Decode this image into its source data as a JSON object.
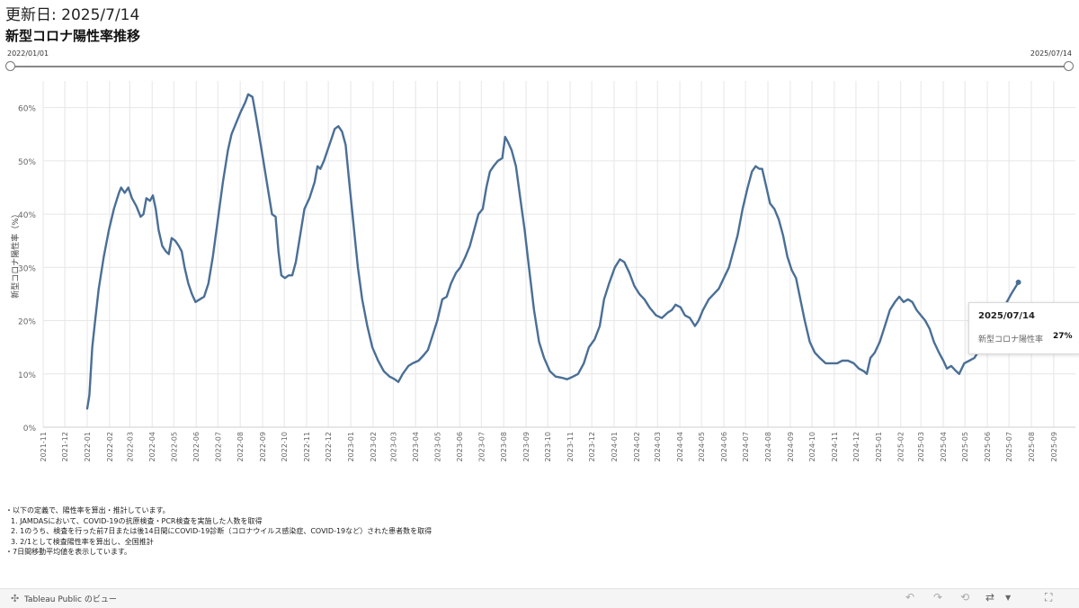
{
  "header": {
    "updated": "更新日: 2025/7/14",
    "title": "新型コロナ陽性率推移"
  },
  "range_filter": {
    "start": "2022/01/01",
    "end": "2025/07/14"
  },
  "tooltip": {
    "date": "2025/07/14",
    "label": "新型コロナ陽性率",
    "value": "27%"
  },
  "notes": [
    "・以下の定義で、陽性率を算出・推計しています。",
    "1. JAMDASにおいて、COVID-19の抗原検査・PCR検査を実施した人数を取得",
    "2. 1のうち、検査を行った前7日または後14日間にCOVID-19診断（コロナウイルス感染症、COVID-19など）された患者数を取得",
    "3. 2/1として検査陽性率を算出し、全国推計",
    "・7日間移動平均値を表示しています。"
  ],
  "footer": {
    "brand": "Tableau Public のビュー",
    "icons": [
      "undo-icon",
      "redo-icon",
      "revert-icon",
      "share-icon",
      "dropdown-icon",
      "fullscreen-icon"
    ]
  },
  "colors": {
    "line": "#4a6f96",
    "grid": "#e6e6e6"
  },
  "chart_data": {
    "type": "line",
    "ylabel": "新型コロナ陽性率（%）",
    "ylim": [
      0,
      65
    ],
    "yticks": [
      0,
      10,
      20,
      30,
      40,
      50,
      60
    ],
    "ytick_labels": [
      "0%",
      "10%",
      "20%",
      "30%",
      "40%",
      "50%",
      "60%"
    ],
    "x_months": [
      "2021-11",
      "2021-12",
      "2022-01",
      "2022-02",
      "2022-03",
      "2022-04",
      "2022-05",
      "2022-06",
      "2022-07",
      "2022-08",
      "2022-09",
      "2022-10",
      "2022-11",
      "2022-12",
      "2023-01",
      "2023-02",
      "2023-03",
      "2023-04",
      "2023-05",
      "2023-06",
      "2023-07",
      "2023-08",
      "2023-09",
      "2023-10",
      "2023-11",
      "2023-12",
      "2024-01",
      "2024-02",
      "2024-03",
      "2024-04",
      "2024-05",
      "2024-06",
      "2024-07",
      "2024-08",
      "2024-09",
      "2024-10",
      "2024-11",
      "2024-12",
      "2025-01",
      "2025-02",
      "2025-03",
      "2025-04",
      "2025-05",
      "2025-06",
      "2025-07",
      "2025-08",
      "2025-09"
    ],
    "grid": true,
    "series": [
      {
        "values": [
          [
            "2022-01-01",
            3.5
          ],
          [
            "2022-01-04",
            6
          ],
          [
            "2022-01-08",
            15
          ],
          [
            "2022-01-12",
            20
          ],
          [
            "2022-01-17",
            26
          ],
          [
            "2022-01-24",
            32
          ],
          [
            "2022-01-31",
            37
          ],
          [
            "2022-02-07",
            41
          ],
          [
            "2022-02-14",
            44
          ],
          [
            "2022-02-17",
            45
          ],
          [
            "2022-02-22",
            44
          ],
          [
            "2022-02-27",
            45
          ],
          [
            "2022-03-04",
            43
          ],
          [
            "2022-03-10",
            41.5
          ],
          [
            "2022-03-16",
            39.5
          ],
          [
            "2022-03-20",
            40
          ],
          [
            "2022-03-24",
            43
          ],
          [
            "2022-03-29",
            42.5
          ],
          [
            "2022-04-02",
            43.5
          ],
          [
            "2022-04-06",
            41
          ],
          [
            "2022-04-10",
            37
          ],
          [
            "2022-04-15",
            34
          ],
          [
            "2022-04-20",
            33
          ],
          [
            "2022-04-24",
            32.5
          ],
          [
            "2022-04-28",
            35.5
          ],
          [
            "2022-05-03",
            35
          ],
          [
            "2022-05-08",
            34
          ],
          [
            "2022-05-12",
            33
          ],
          [
            "2022-05-16",
            30
          ],
          [
            "2022-05-21",
            27
          ],
          [
            "2022-05-26",
            25
          ],
          [
            "2022-05-31",
            23.5
          ],
          [
            "2022-06-06",
            24
          ],
          [
            "2022-06-12",
            24.5
          ],
          [
            "2022-06-18",
            27
          ],
          [
            "2022-06-24",
            32
          ],
          [
            "2022-07-01",
            39
          ],
          [
            "2022-07-08",
            46
          ],
          [
            "2022-07-15",
            52
          ],
          [
            "2022-07-20",
            55
          ],
          [
            "2022-07-26",
            57
          ],
          [
            "2022-08-01",
            59
          ],
          [
            "2022-08-08",
            61
          ],
          [
            "2022-08-12",
            62.5
          ],
          [
            "2022-08-18",
            62
          ],
          [
            "2022-08-22",
            59
          ],
          [
            "2022-08-27",
            55
          ],
          [
            "2022-09-02",
            50
          ],
          [
            "2022-09-08",
            45
          ],
          [
            "2022-09-14",
            40
          ],
          [
            "2022-09-19",
            39.5
          ],
          [
            "2022-09-23",
            33
          ],
          [
            "2022-09-27",
            28.5
          ],
          [
            "2022-10-02",
            28
          ],
          [
            "2022-10-07",
            28.5
          ],
          [
            "2022-10-12",
            28.5
          ],
          [
            "2022-10-17",
            31
          ],
          [
            "2022-10-23",
            36
          ],
          [
            "2022-10-29",
            41
          ],
          [
            "2022-11-05",
            43
          ],
          [
            "2022-11-12",
            46
          ],
          [
            "2022-11-16",
            49
          ],
          [
            "2022-11-20",
            48.5
          ],
          [
            "2022-11-25",
            50
          ],
          [
            "2022-11-30",
            52
          ],
          [
            "2022-12-05",
            54
          ],
          [
            "2022-12-10",
            56
          ],
          [
            "2022-12-15",
            56.5
          ],
          [
            "2022-12-20",
            55.5
          ],
          [
            "2022-12-25",
            53
          ],
          [
            "2022-12-30",
            46
          ],
          [
            "2023-01-05",
            38
          ],
          [
            "2023-01-11",
            30
          ],
          [
            "2023-01-17",
            24
          ],
          [
            "2023-01-24",
            19
          ],
          [
            "2023-01-31",
            15
          ],
          [
            "2023-02-08",
            12.5
          ],
          [
            "2023-02-16",
            10.5
          ],
          [
            "2023-02-24",
            9.5
          ],
          [
            "2023-03-03",
            9
          ],
          [
            "2023-03-08",
            8.5
          ],
          [
            "2023-03-14",
            10
          ],
          [
            "2023-03-22",
            11.5
          ],
          [
            "2023-03-28",
            12
          ],
          [
            "2023-04-05",
            12.5
          ],
          [
            "2023-04-12",
            13.5
          ],
          [
            "2023-04-18",
            14.5
          ],
          [
            "2023-04-24",
            17
          ],
          [
            "2023-05-01",
            20
          ],
          [
            "2023-05-08",
            24
          ],
          [
            "2023-05-14",
            24.5
          ],
          [
            "2023-05-20",
            27
          ],
          [
            "2023-05-27",
            29
          ],
          [
            "2023-06-02",
            30
          ],
          [
            "2023-06-09",
            32
          ],
          [
            "2023-06-15",
            34
          ],
          [
            "2023-06-21",
            37
          ],
          [
            "2023-06-27",
            40
          ],
          [
            "2023-07-03",
            41
          ],
          [
            "2023-07-08",
            45
          ],
          [
            "2023-07-13",
            48
          ],
          [
            "2023-07-18",
            49
          ],
          [
            "2023-07-24",
            50
          ],
          [
            "2023-07-30",
            50.5
          ],
          [
            "2023-08-03",
            54.5
          ],
          [
            "2023-08-07",
            53.5
          ],
          [
            "2023-08-12",
            52
          ],
          [
            "2023-08-18",
            49
          ],
          [
            "2023-08-24",
            43
          ],
          [
            "2023-08-30",
            37
          ],
          [
            "2023-09-05",
            30
          ],
          [
            "2023-09-12",
            22
          ],
          [
            "2023-09-19",
            16
          ],
          [
            "2023-09-26",
            13
          ],
          [
            "2023-10-04",
            10.5
          ],
          [
            "2023-10-12",
            9.5
          ],
          [
            "2023-10-20",
            9.3
          ],
          [
            "2023-10-28",
            9
          ],
          [
            "2023-11-05",
            9.5
          ],
          [
            "2023-11-12",
            10
          ],
          [
            "2023-11-20",
            12
          ],
          [
            "2023-11-27",
            15
          ],
          [
            "2023-12-05",
            16.5
          ],
          [
            "2023-12-12",
            19
          ],
          [
            "2023-12-18",
            24
          ],
          [
            "2023-12-25",
            27
          ],
          [
            "2024-01-02",
            30
          ],
          [
            "2024-01-09",
            31.5
          ],
          [
            "2024-01-15",
            31
          ],
          [
            "2024-01-22",
            29
          ],
          [
            "2024-01-29",
            26.5
          ],
          [
            "2024-02-05",
            25
          ],
          [
            "2024-02-12",
            24
          ],
          [
            "2024-02-19",
            22.5
          ],
          [
            "2024-02-28",
            21
          ],
          [
            "2024-03-07",
            20.5
          ],
          [
            "2024-03-15",
            21.5
          ],
          [
            "2024-03-21",
            22
          ],
          [
            "2024-03-26",
            23
          ],
          [
            "2024-04-02",
            22.5
          ],
          [
            "2024-04-08",
            21
          ],
          [
            "2024-04-15",
            20.5
          ],
          [
            "2024-04-22",
            19
          ],
          [
            "2024-04-27",
            20
          ],
          [
            "2024-05-03",
            22
          ],
          [
            "2024-05-11",
            24
          ],
          [
            "2024-05-18",
            25
          ],
          [
            "2024-05-25",
            26
          ],
          [
            "2024-06-01",
            28
          ],
          [
            "2024-06-08",
            30
          ],
          [
            "2024-06-14",
            33
          ],
          [
            "2024-06-20",
            36
          ],
          [
            "2024-06-27",
            41
          ],
          [
            "2024-07-04",
            45
          ],
          [
            "2024-07-10",
            48
          ],
          [
            "2024-07-15",
            49
          ],
          [
            "2024-07-20",
            48.5
          ],
          [
            "2024-07-24",
            48.5
          ],
          [
            "2024-07-30",
            45
          ],
          [
            "2024-08-04",
            42
          ],
          [
            "2024-08-10",
            41
          ],
          [
            "2024-08-16",
            39
          ],
          [
            "2024-08-22",
            36
          ],
          [
            "2024-08-28",
            32
          ],
          [
            "2024-09-03",
            29.5
          ],
          [
            "2024-09-09",
            28
          ],
          [
            "2024-09-15",
            24
          ],
          [
            "2024-09-21",
            20
          ],
          [
            "2024-09-28",
            16
          ],
          [
            "2024-10-05",
            14
          ],
          [
            "2024-10-12",
            13
          ],
          [
            "2024-10-20",
            12
          ],
          [
            "2024-10-28",
            12
          ],
          [
            "2024-11-05",
            12
          ],
          [
            "2024-11-12",
            12.5
          ],
          [
            "2024-11-20",
            12.5
          ],
          [
            "2024-11-28",
            12
          ],
          [
            "2024-12-05",
            11
          ],
          [
            "2024-12-12",
            10.5
          ],
          [
            "2024-12-16",
            10
          ],
          [
            "2024-12-21",
            13
          ],
          [
            "2024-12-27",
            14
          ],
          [
            "2025-01-03",
            16
          ],
          [
            "2025-01-10",
            19
          ],
          [
            "2025-01-17",
            22
          ],
          [
            "2025-01-24",
            23.5
          ],
          [
            "2025-01-30",
            24.5
          ],
          [
            "2025-02-05",
            23.5
          ],
          [
            "2025-02-11",
            24
          ],
          [
            "2025-02-17",
            23.5
          ],
          [
            "2025-02-23",
            22
          ],
          [
            "2025-03-01",
            21
          ],
          [
            "2025-03-07",
            20
          ],
          [
            "2025-03-13",
            18.5
          ],
          [
            "2025-03-19",
            16
          ],
          [
            "2025-03-26",
            14
          ],
          [
            "2025-04-01",
            12.5
          ],
          [
            "2025-04-06",
            11
          ],
          [
            "2025-04-12",
            11.5
          ],
          [
            "2025-04-19",
            10.5
          ],
          [
            "2025-04-23",
            10
          ],
          [
            "2025-04-30",
            12
          ],
          [
            "2025-05-07",
            12.5
          ],
          [
            "2025-05-14",
            13
          ],
          [
            "2025-05-21",
            14.5
          ],
          [
            "2025-05-28",
            16
          ],
          [
            "2025-06-05",
            17.5
          ],
          [
            "2025-06-14",
            20
          ],
          [
            "2025-06-24",
            22.5
          ],
          [
            "2025-07-04",
            25
          ],
          [
            "2025-07-14",
            27.2
          ]
        ]
      }
    ]
  }
}
